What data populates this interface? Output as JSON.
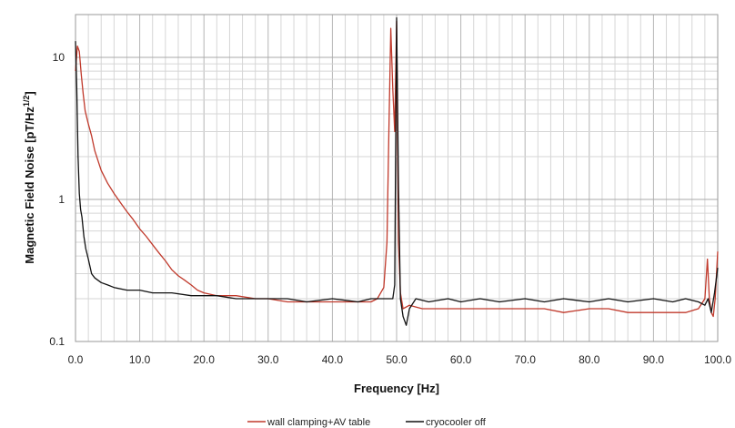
{
  "chart_data": {
    "type": "line",
    "title": "",
    "xlabel": "Frequency [Hz]",
    "ylabel": "Magnetic Field Noise [pT/Hz",
    "ylabel_sup": "1/2",
    "ylabel_end": "]",
    "xscale": "linear",
    "yscale": "log",
    "xlim": [
      0,
      100
    ],
    "ylim": [
      0.1,
      20
    ],
    "x_ticks": [
      0,
      10,
      20,
      30,
      40,
      50,
      60,
      70,
      80,
      90,
      100
    ],
    "x_tick_labels": [
      "0.0",
      "10.0",
      "20.0",
      "30.0",
      "40.0",
      "50.0",
      "60.0",
      "70.0",
      "80.0",
      "90.0",
      "100.0"
    ],
    "y_ticks": [
      0.1,
      1,
      10
    ],
    "y_tick_labels": [
      "0.1",
      "1",
      "10"
    ],
    "x_minor_step": 2,
    "grid": true,
    "legend_position": "bottom",
    "series": [
      {
        "name": "wall clamping+AV table",
        "color": "#c0392b",
        "x": [
          0,
          0.3,
          0.6,
          0.9,
          1.2,
          1.5,
          2,
          2.5,
          3,
          4,
          5,
          6,
          7,
          8,
          9,
          10,
          11,
          12,
          13,
          14,
          15,
          16,
          17,
          18,
          19,
          20,
          22,
          25,
          28,
          30,
          33,
          36,
          40,
          44,
          46,
          47,
          48,
          48.5,
          48.8,
          49.1,
          49.4,
          49.7,
          50,
          50.3,
          50.6,
          51,
          52,
          54,
          57,
          60,
          63,
          66,
          70,
          73,
          76,
          80,
          83,
          86,
          90,
          93,
          95,
          97,
          98,
          98.4,
          98.7,
          99,
          99.3,
          99.6,
          100
        ],
        "y": [
          8,
          12,
          11,
          7.5,
          5.5,
          4.2,
          3.4,
          2.8,
          2.2,
          1.6,
          1.3,
          1.1,
          0.95,
          0.82,
          0.72,
          0.62,
          0.55,
          0.48,
          0.42,
          0.37,
          0.32,
          0.29,
          0.27,
          0.25,
          0.23,
          0.22,
          0.21,
          0.21,
          0.2,
          0.2,
          0.19,
          0.19,
          0.19,
          0.19,
          0.19,
          0.2,
          0.24,
          0.5,
          3,
          16,
          6,
          3,
          18,
          0.5,
          0.22,
          0.17,
          0.18,
          0.17,
          0.17,
          0.17,
          0.17,
          0.17,
          0.17,
          0.17,
          0.16,
          0.17,
          0.17,
          0.16,
          0.16,
          0.16,
          0.16,
          0.17,
          0.2,
          0.38,
          0.2,
          0.16,
          0.15,
          0.2,
          0.43
        ]
      },
      {
        "name": "cryocooler off",
        "color": "#111111",
        "x": [
          0,
          0.2,
          0.4,
          0.6,
          0.8,
          1,
          1.3,
          1.6,
          2,
          2.5,
          3,
          4,
          5,
          6,
          8,
          10,
          12,
          15,
          18,
          20,
          22,
          25,
          28,
          30,
          33,
          36,
          40,
          44,
          46,
          48,
          49,
          49.4,
          49.7,
          50,
          50.3,
          50.6,
          51,
          51.5,
          52,
          53,
          55,
          58,
          60,
          63,
          66,
          70,
          73,
          76,
          80,
          83,
          86,
          90,
          93,
          95,
          97,
          98,
          98.5,
          99,
          99.5,
          100
        ],
        "y": [
          13,
          6,
          2,
          1.1,
          0.85,
          0.75,
          0.55,
          0.45,
          0.38,
          0.3,
          0.28,
          0.26,
          0.25,
          0.24,
          0.23,
          0.23,
          0.22,
          0.22,
          0.21,
          0.21,
          0.21,
          0.2,
          0.2,
          0.2,
          0.2,
          0.19,
          0.2,
          0.19,
          0.2,
          0.2,
          0.2,
          0.2,
          0.25,
          19,
          1.2,
          0.2,
          0.15,
          0.13,
          0.17,
          0.2,
          0.19,
          0.2,
          0.19,
          0.2,
          0.19,
          0.2,
          0.19,
          0.2,
          0.19,
          0.2,
          0.19,
          0.2,
          0.19,
          0.2,
          0.19,
          0.18,
          0.2,
          0.16,
          0.22,
          0.33
        ]
      }
    ]
  }
}
